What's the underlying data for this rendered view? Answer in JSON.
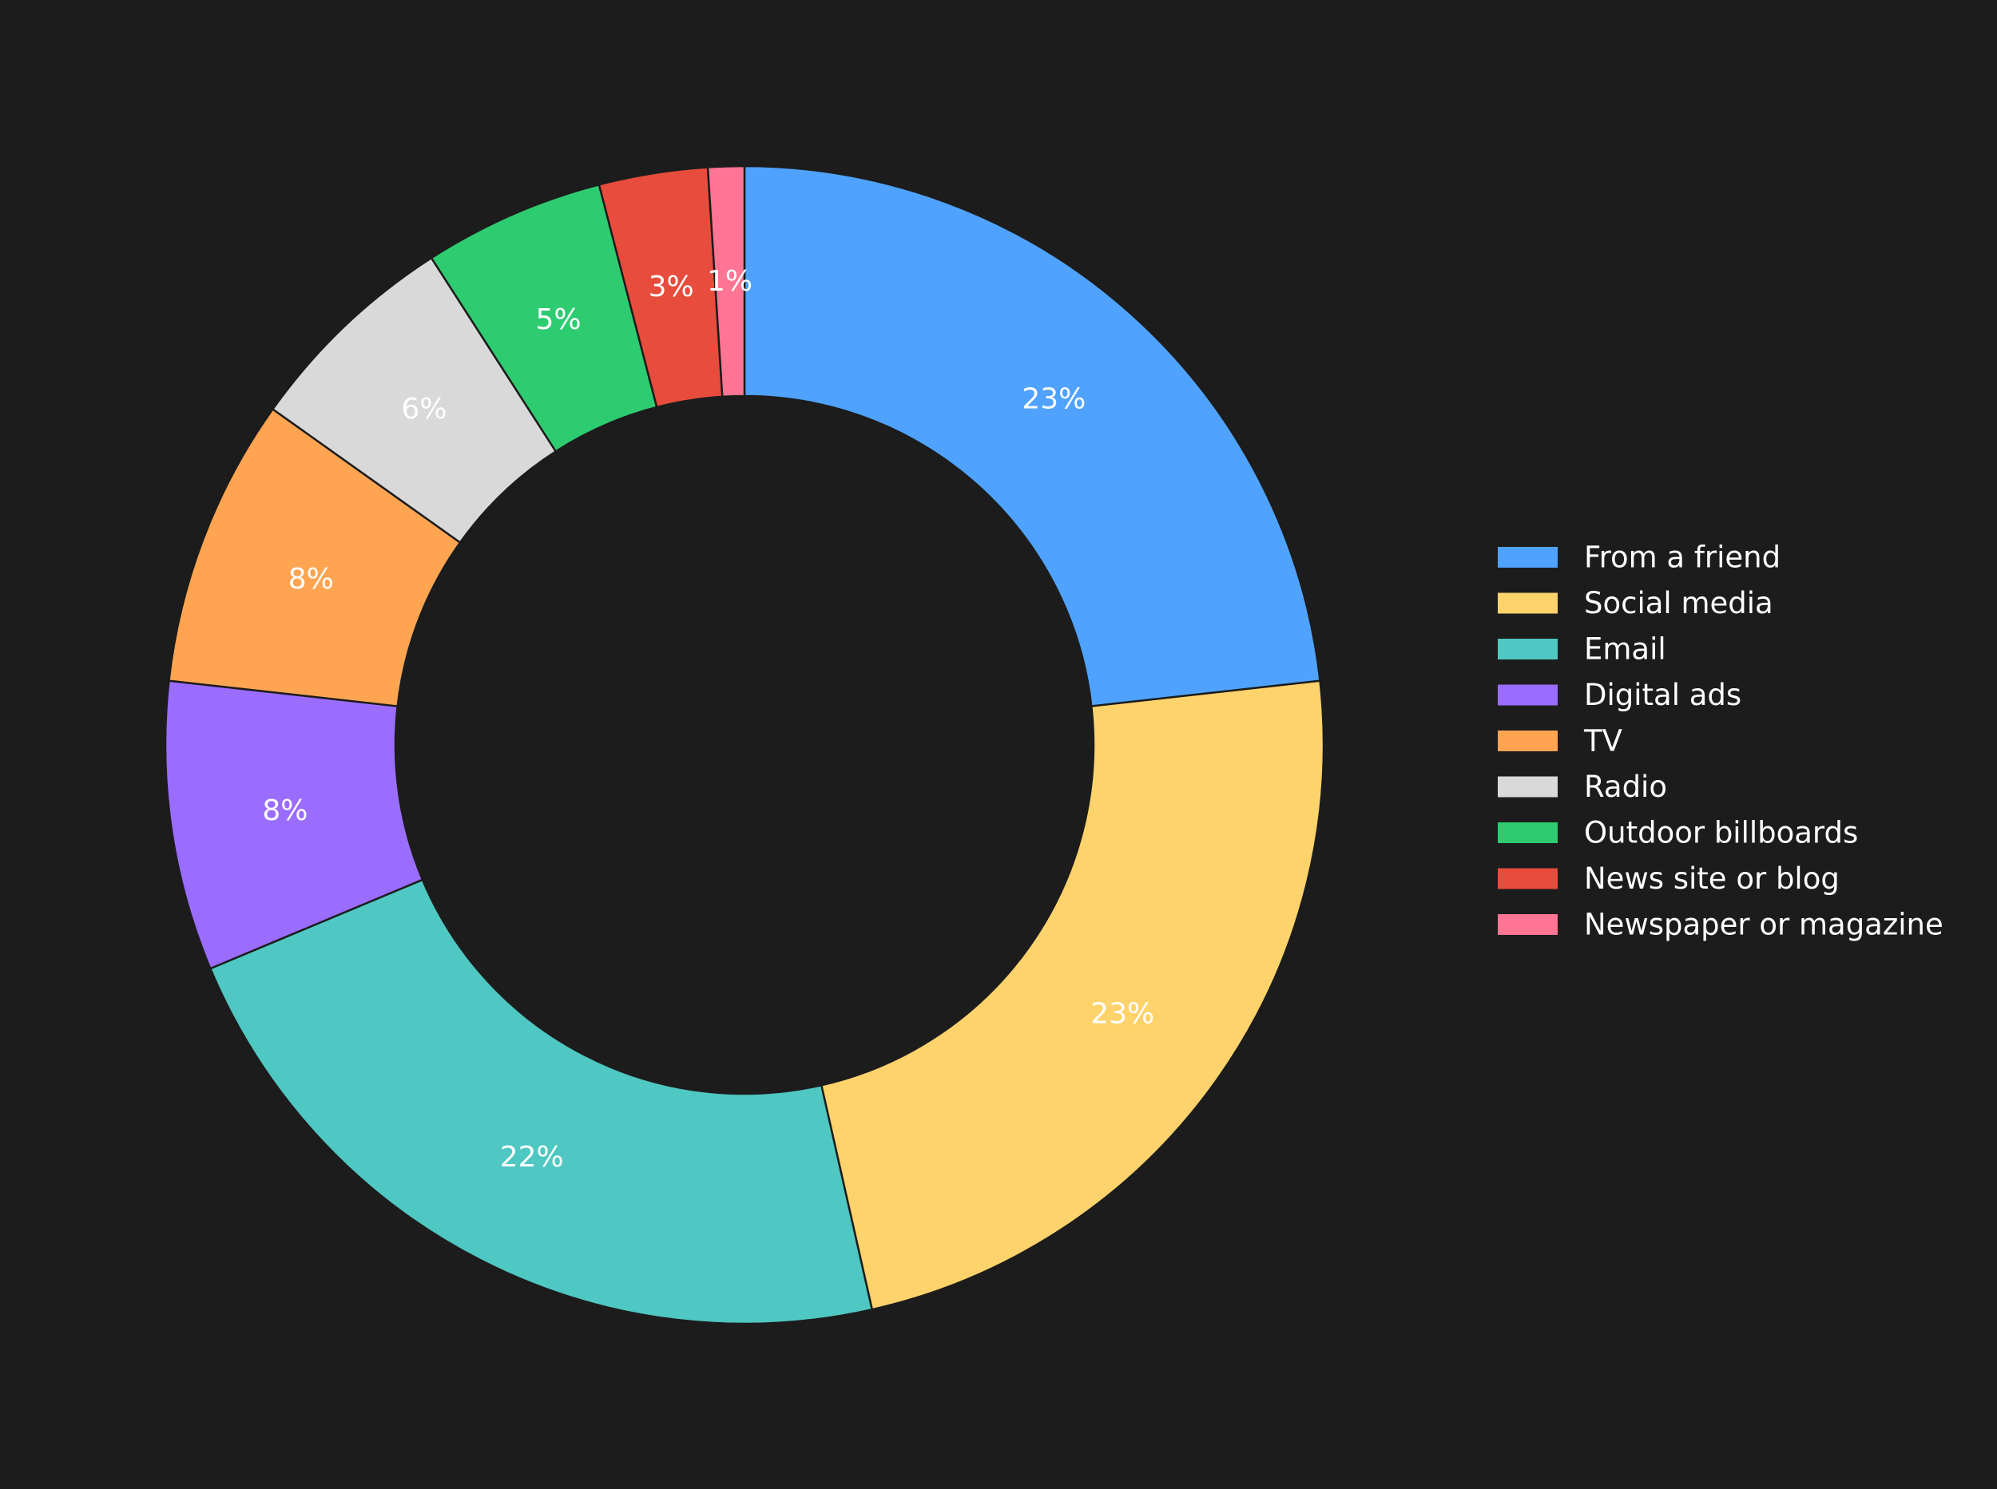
{
  "chart_data": {
    "type": "pie",
    "variant": "donut",
    "title": "",
    "categories": [
      "From a friend",
      "Social media",
      "Email",
      "Digital ads",
      "TV",
      "Radio",
      "Outdoor billboards",
      "News site or blog",
      "Newspaper or magazine"
    ],
    "values": [
      23,
      23,
      22,
      8,
      8,
      6,
      5,
      3,
      1
    ],
    "labels": [
      "23%",
      "23%",
      "22%",
      "8%",
      "8%",
      "6%",
      "5%",
      "3%",
      "1%"
    ],
    "colors": [
      "#4fa3ff",
      "#ffd36b",
      "#4fc7c2",
      "#9b6dff",
      "#ffa552",
      "#d9d9d9",
      "#2ecc71",
      "#e74c3c",
      "#ff7593"
    ],
    "legend": {
      "position": "right"
    },
    "background_color": "#1c1c1c",
    "label_color": "#ffffff"
  }
}
